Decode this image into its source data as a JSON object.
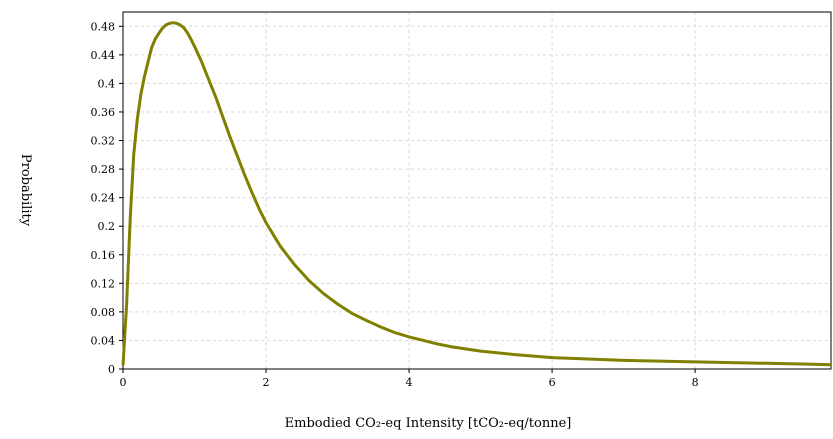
{
  "chart_data": {
    "type": "line",
    "title": "",
    "xlabel": "Embodied CO₂-eq Intensity [tCO₂-eq/tonne]",
    "ylabel": "Probability",
    "xlim": [
      0,
      9.9
    ],
    "ylim": [
      0,
      0.5
    ],
    "x_ticks": [
      0,
      2,
      4,
      6,
      8
    ],
    "x_tick_labels": [
      "0",
      "2",
      "4",
      "6",
      "8"
    ],
    "y_ticks": [
      0,
      0.04,
      0.08,
      0.12,
      0.16,
      0.2,
      0.24,
      0.28,
      0.32,
      0.36,
      0.4,
      0.44,
      0.48
    ],
    "y_tick_labels": [
      "0",
      "0.04",
      "0.08",
      "0.12",
      "0.16",
      "0.2",
      "0.24",
      "0.28",
      "0.32",
      "0.36",
      "0.4",
      "0.44",
      "0.48"
    ],
    "grid": true,
    "line_color": "#808000",
    "series": [
      {
        "name": "",
        "x": [
          0.0,
          0.05,
          0.1,
          0.15,
          0.2,
          0.25,
          0.3,
          0.35,
          0.4,
          0.45,
          0.5,
          0.55,
          0.6,
          0.65,
          0.7,
          0.75,
          0.8,
          0.85,
          0.9,
          0.95,
          1.0,
          1.1,
          1.2,
          1.3,
          1.4,
          1.5,
          1.6,
          1.7,
          1.8,
          1.9,
          2.0,
          2.2,
          2.4,
          2.6,
          2.8,
          3.0,
          3.2,
          3.4,
          3.6,
          3.8,
          4.0,
          4.2,
          4.4,
          4.6,
          4.8,
          5.0,
          5.5,
          6.0,
          6.5,
          7.0,
          7.5,
          8.0,
          8.5,
          9.0,
          9.5,
          9.9
        ],
        "y": [
          0.005,
          0.09,
          0.21,
          0.3,
          0.35,
          0.385,
          0.41,
          0.43,
          0.45,
          0.462,
          0.47,
          0.477,
          0.482,
          0.484,
          0.485,
          0.484,
          0.482,
          0.478,
          0.471,
          0.462,
          0.452,
          0.43,
          0.405,
          0.38,
          0.352,
          0.324,
          0.298,
          0.272,
          0.248,
          0.225,
          0.205,
          0.172,
          0.146,
          0.124,
          0.106,
          0.091,
          0.078,
          0.068,
          0.059,
          0.051,
          0.045,
          0.04,
          0.035,
          0.031,
          0.028,
          0.025,
          0.02,
          0.016,
          0.014,
          0.012,
          0.011,
          0.01,
          0.009,
          0.008,
          0.007,
          0.006
        ]
      }
    ]
  }
}
